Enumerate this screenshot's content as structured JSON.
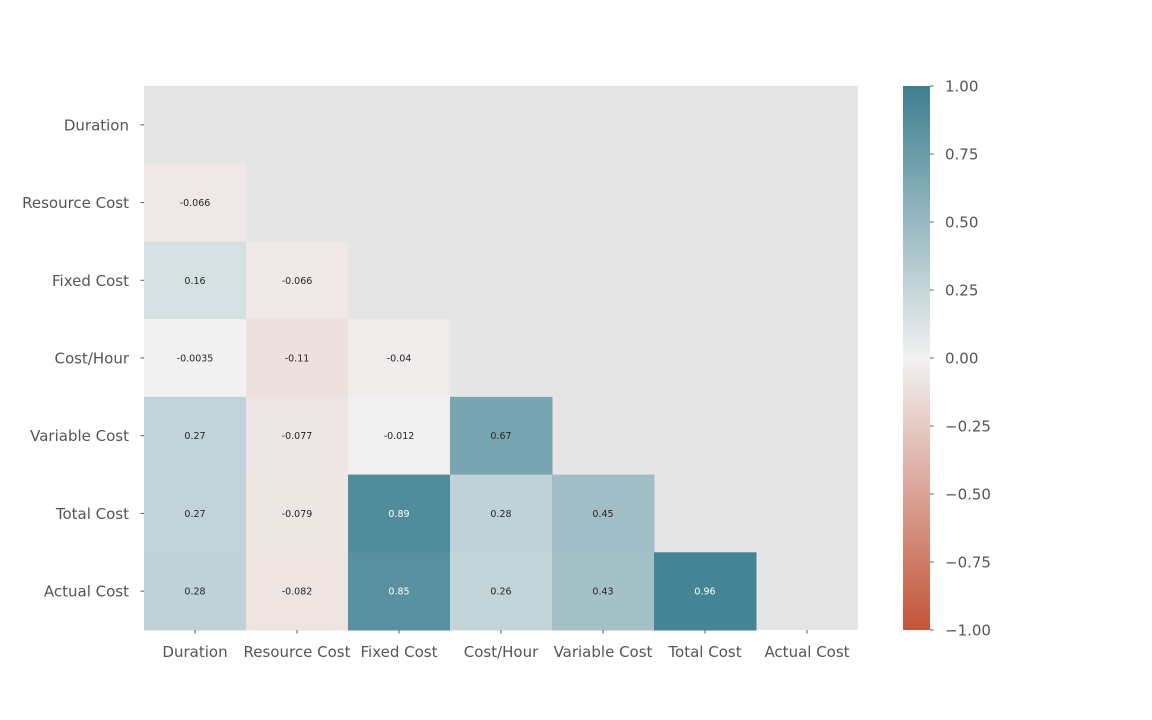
{
  "chart_data": {
    "type": "heatmap",
    "title": "",
    "xlabel": "",
    "ylabel": "",
    "variables": [
      "Duration",
      "Resource Cost",
      "Fixed Cost",
      "Cost/Hour",
      "Variable Cost",
      "Total Cost",
      "Actual Cost"
    ],
    "mask": "upper triangle including diagonal",
    "cells": [
      {
        "row": "Resource Cost",
        "col": "Duration",
        "value": -0.066,
        "label": "-0.066"
      },
      {
        "row": "Fixed Cost",
        "col": "Duration",
        "value": 0.16,
        "label": "0.16"
      },
      {
        "row": "Fixed Cost",
        "col": "Resource Cost",
        "value": -0.066,
        "label": "-0.066"
      },
      {
        "row": "Cost/Hour",
        "col": "Duration",
        "value": -0.0035,
        "label": "-0.0035"
      },
      {
        "row": "Cost/Hour",
        "col": "Resource Cost",
        "value": -0.11,
        "label": "-0.11"
      },
      {
        "row": "Cost/Hour",
        "col": "Fixed Cost",
        "value": -0.04,
        "label": "-0.04"
      },
      {
        "row": "Variable Cost",
        "col": "Duration",
        "value": 0.27,
        "label": "0.27"
      },
      {
        "row": "Variable Cost",
        "col": "Resource Cost",
        "value": -0.077,
        "label": "-0.077"
      },
      {
        "row": "Variable Cost",
        "col": "Fixed Cost",
        "value": -0.012,
        "label": "-0.012"
      },
      {
        "row": "Variable Cost",
        "col": "Cost/Hour",
        "value": 0.67,
        "label": "0.67"
      },
      {
        "row": "Total Cost",
        "col": "Duration",
        "value": 0.27,
        "label": "0.27"
      },
      {
        "row": "Total Cost",
        "col": "Resource Cost",
        "value": -0.079,
        "label": "-0.079"
      },
      {
        "row": "Total Cost",
        "col": "Fixed Cost",
        "value": 0.89,
        "label": "0.89"
      },
      {
        "row": "Total Cost",
        "col": "Cost/Hour",
        "value": 0.28,
        "label": "0.28"
      },
      {
        "row": "Total Cost",
        "col": "Variable Cost",
        "value": 0.45,
        "label": "0.45"
      },
      {
        "row": "Actual Cost",
        "col": "Duration",
        "value": 0.28,
        "label": "0.28"
      },
      {
        "row": "Actual Cost",
        "col": "Resource Cost",
        "value": -0.082,
        "label": "-0.082"
      },
      {
        "row": "Actual Cost",
        "col": "Fixed Cost",
        "value": 0.85,
        "label": "0.85"
      },
      {
        "row": "Actual Cost",
        "col": "Cost/Hour",
        "value": 0.26,
        "label": "0.26"
      },
      {
        "row": "Actual Cost",
        "col": "Variable Cost",
        "value": 0.43,
        "label": "0.43"
      },
      {
        "row": "Actual Cost",
        "col": "Total Cost",
        "value": 0.96,
        "label": "0.96"
      }
    ],
    "colorbar": {
      "range": [
        -1.0,
        1.0
      ],
      "ticks": [
        1.0,
        0.75,
        0.5,
        0.25,
        0.0,
        -0.25,
        -0.5,
        -0.75,
        -1.0
      ],
      "tick_labels": [
        "1.00",
        "0.75",
        "0.50",
        "0.25",
        "0.00",
        "−0.25",
        "−0.50",
        "−0.75",
        "−1.00"
      ],
      "low_color": "#c3553a",
      "mid_color": "#f2f2f2",
      "high_color": "#3d7f90"
    },
    "background_color": "#e5e5e5",
    "tick_label_color": "#555555"
  }
}
